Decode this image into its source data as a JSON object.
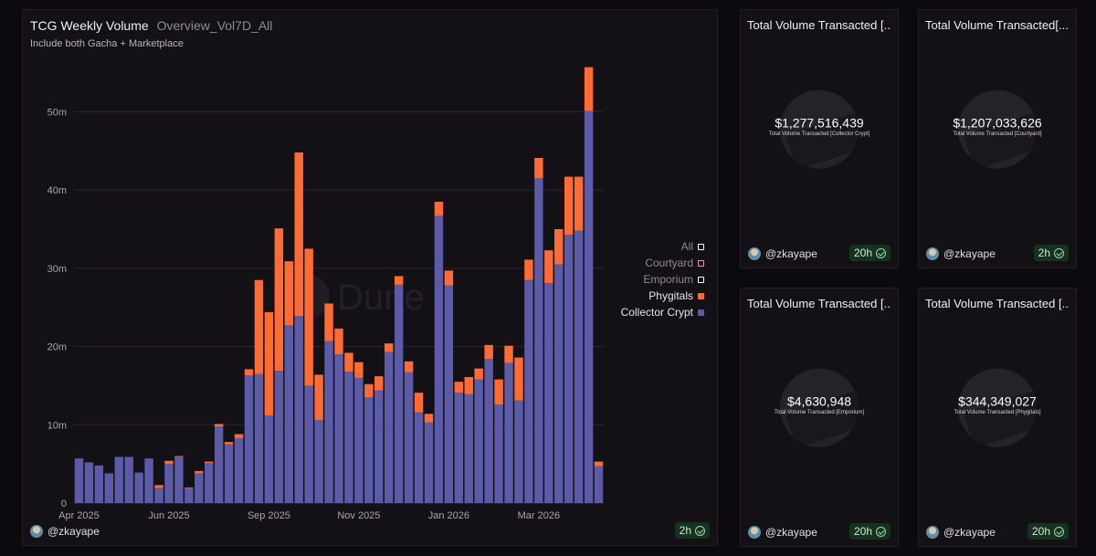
{
  "chart_panel": {
    "title": "TCG Weekly Volume",
    "query_name": "Overview_Vol7D_All",
    "subtitle": "Include both Gacha + Marketplace",
    "user": "@zkayape",
    "age_badge": "2h",
    "watermark": "Dune"
  },
  "chart_data": {
    "type": "bar",
    "stacked": true,
    "title": "TCG Weekly Volume",
    "subtitle": "Include both Gacha + Marketplace",
    "ylim": [
      0,
      56000000
    ],
    "y_ticks": [
      0,
      10000000,
      20000000,
      30000000,
      40000000,
      50000000
    ],
    "y_tick_labels": [
      "0",
      "10m",
      "20m",
      "30m",
      "40m",
      "50m"
    ],
    "x_tick_labels": [
      "Apr 2025",
      "Jun 2025",
      "Sep 2025",
      "Nov 2025",
      "Jan 2026",
      "Mar 2026"
    ],
    "x_tick_bar_index": [
      0,
      9,
      19,
      28,
      37,
      46
    ],
    "grid": true,
    "legend_position": "right",
    "legend": [
      {
        "name": "All",
        "color": "#ffffff",
        "filled": false
      },
      {
        "name": "Courtyard",
        "color": "#d8a0b8",
        "filled": false
      },
      {
        "name": "Emporium",
        "color": "#ffffff",
        "filled": false
      },
      {
        "name": "Phygitals",
        "color": "#ff6b35",
        "filled": true
      },
      {
        "name": "Collector Crypt",
        "color": "#5b5ba7",
        "filled": true
      }
    ],
    "series": [
      {
        "name": "Collector Crypt",
        "color": "#5b5ba7",
        "values": [
          5.7,
          5.2,
          4.8,
          3.8,
          5.9,
          5.9,
          3.9,
          5.7,
          1.9,
          5.0,
          5.9,
          1.9,
          3.8,
          5.1,
          9.8,
          7.5,
          8.3,
          16.3,
          16.5,
          11.2,
          16.9,
          22.7,
          23.9,
          15.0,
          10.6,
          20.7,
          19.0,
          16.8,
          16.0,
          13.5,
          14.4,
          19.3,
          27.9,
          16.7,
          11.6,
          10.3,
          36.7,
          27.8,
          14.1,
          13.9,
          15.8,
          18.4,
          12.6,
          17.9,
          13.1,
          28.5,
          41.5,
          28.1,
          30.5,
          34.3,
          34.8,
          50.1,
          4.7
        ]
      },
      {
        "name": "Phygitals",
        "color": "#ff6b35",
        "values": [
          0,
          0,
          0,
          0,
          0,
          0,
          0,
          0,
          0.4,
          0.4,
          0.1,
          0.1,
          0.3,
          0.2,
          0.3,
          0.3,
          0.5,
          0.8,
          12.0,
          13.2,
          18.2,
          8.2,
          20.9,
          17.5,
          5.8,
          4.8,
          3.3,
          2.4,
          2.0,
          1.7,
          1.8,
          1.1,
          1.1,
          1.4,
          2.5,
          1.1,
          1.8,
          1.9,
          1.4,
          2.2,
          1.4,
          1.8,
          3.2,
          2.2,
          5.5,
          2.6,
          2.6,
          4.2,
          4.5,
          7.4,
          6.9,
          5.6,
          0.6
        ]
      }
    ]
  },
  "cards": [
    {
      "title": "Total Volume Transacted [...",
      "value": "$1,277,516,439",
      "label": "Total Volume Transacted [Collector Crypt]",
      "user": "@zkayape",
      "badge": "20h"
    },
    {
      "title": "Total Volume Transacted[...",
      "value": "$1,207,033,626",
      "label": "Total Volume Transacted [Courtyard]",
      "user": "@zkayape",
      "badge": "2h"
    },
    {
      "title": "Total Volume Transacted [...",
      "value": "$4,630,948",
      "label": "Total Volume Transacted [Emporium]",
      "user": "@zkayape",
      "badge": "20h"
    },
    {
      "title": "Total Volume Transacted [...",
      "value": "$344,349,027",
      "label": "Total Volume Transacted [Phygitals]",
      "user": "@zkayape",
      "badge": "20h"
    }
  ]
}
